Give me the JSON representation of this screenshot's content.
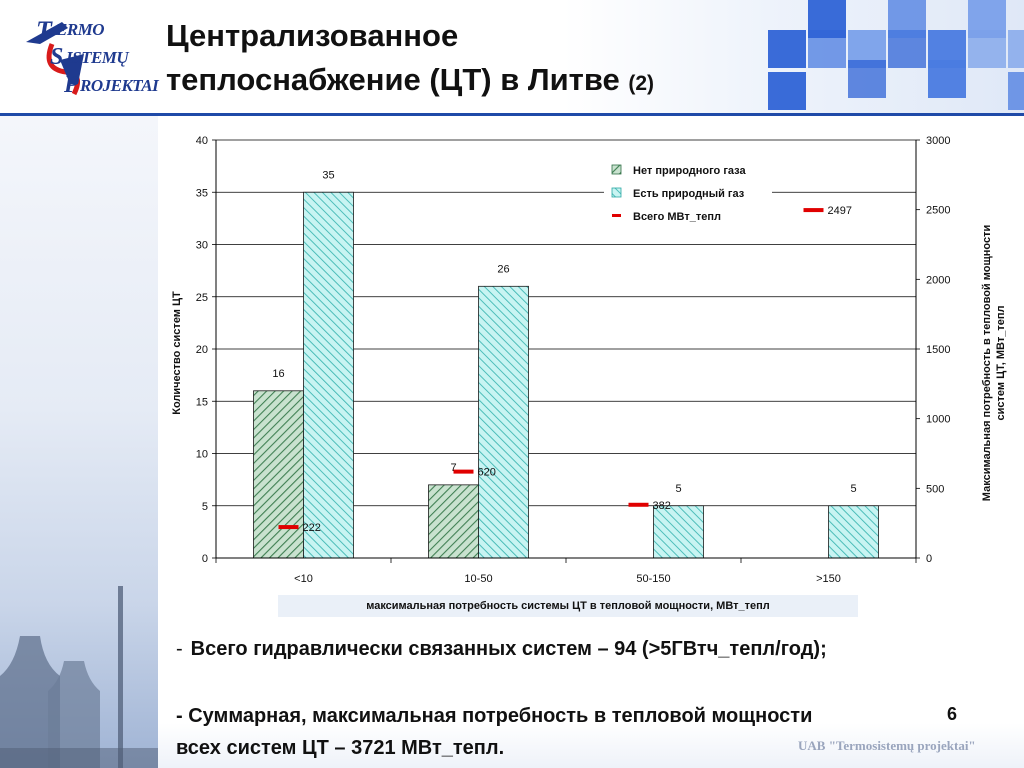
{
  "header": {
    "title_line1": "Централизованное",
    "title_line2": "теплоснабжение (ЦТ) в Литве",
    "title_suffix": "(2)",
    "logo_words": [
      "ERMO",
      "ISTEMŲ",
      "ROJEKTAI"
    ],
    "logo_initials": [
      "T",
      "S",
      "P"
    ]
  },
  "chart_data": {
    "type": "bar",
    "categories": [
      "<10",
      "10-50",
      "50-150",
      ">150"
    ],
    "series": [
      {
        "name": "Нет природного газа",
        "values": [
          16,
          7,
          null,
          null
        ],
        "color": "#4a8a5c",
        "pattern": "diagonal-hatch-green"
      },
      {
        "name": "Есть природный газ",
        "values": [
          35,
          26,
          5,
          5
        ],
        "color": "#7fe0dc",
        "pattern": "diagonal-hatch-cyan"
      },
      {
        "name": "Всего МВт_тепл",
        "values": [
          222,
          620,
          382,
          2497
        ],
        "color": "#e00000",
        "axis": "right",
        "marker": "dash"
      }
    ],
    "y_left": {
      "label": "Количество систем ЦТ",
      "range": [
        0,
        40
      ],
      "ticks": [
        0,
        5,
        10,
        15,
        20,
        25,
        30,
        35,
        40
      ]
    },
    "y_right": {
      "label_line1": "Максимальная потребность в тепловой мощности",
      "label_line2": "систем ЦТ, МВт_тепл",
      "range": [
        0,
        3000
      ],
      "ticks": [
        0,
        500,
        1000,
        1500,
        2000,
        2500,
        3000
      ]
    },
    "xlabel": "максимальная потребность системы ЦТ в тепловой мощности, МВт_тепл",
    "grid": true,
    "legend_position": "top-right"
  },
  "bullets": {
    "b1_dash": "-",
    "b1": "Всего гидравлически связанных систем – 94 (>5ГВтч_тепл/год);",
    "b2_line1": "- Суммарная, максимальная потребность в тепловой мощности",
    "b2_line2": "всех систем ЦТ – 3721 МВт_тепл."
  },
  "page_number": "6",
  "footer_brand": "UAB \"Termosistemų projektai\""
}
